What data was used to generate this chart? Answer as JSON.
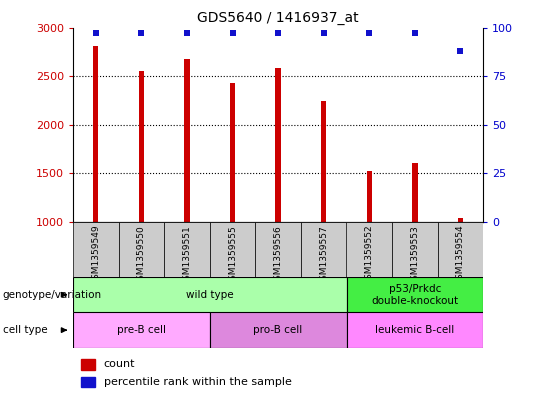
{
  "title": "GDS5640 / 1416937_at",
  "samples": [
    "GSM1359549",
    "GSM1359550",
    "GSM1359551",
    "GSM1359555",
    "GSM1359556",
    "GSM1359557",
    "GSM1359552",
    "GSM1359553",
    "GSM1359554"
  ],
  "counts": [
    2810,
    2550,
    2680,
    2430,
    2580,
    2240,
    1520,
    1610,
    1040
  ],
  "percentile_ranks": [
    97,
    97,
    97,
    97,
    97,
    97,
    97,
    97,
    88
  ],
  "ylim_left": [
    1000,
    3000
  ],
  "ylim_right": [
    0,
    100
  ],
  "yticks_left": [
    1000,
    1500,
    2000,
    2500,
    3000
  ],
  "yticks_right": [
    0,
    25,
    50,
    75,
    100
  ],
  "grid_values": [
    1500,
    2000,
    2500
  ],
  "bar_color": "#cc0000",
  "dot_color": "#1111cc",
  "bar_width": 0.12,
  "genotype_groups": [
    {
      "label": "wild type",
      "start": 0,
      "end": 6,
      "color": "#aaffaa"
    },
    {
      "label": "p53/Prkdc\ndouble-knockout",
      "start": 6,
      "end": 9,
      "color": "#44ee44"
    }
  ],
  "cell_type_groups": [
    {
      "label": "pre-B cell",
      "start": 0,
      "end": 3,
      "color": "#ffaaff"
    },
    {
      "label": "pro-B cell",
      "start": 3,
      "end": 6,
      "color": "#dd88dd"
    },
    {
      "label": "leukemic B-cell",
      "start": 6,
      "end": 9,
      "color": "#ff88ff"
    }
  ],
  "left_label_color": "#cc0000",
  "right_label_color": "#0000cc",
  "sample_bg_color": "#cccccc",
  "legend_red_label": "count",
  "legend_blue_label": "percentile rank within the sample",
  "genotype_label": "genotype/variation",
  "celltype_label": "cell type"
}
